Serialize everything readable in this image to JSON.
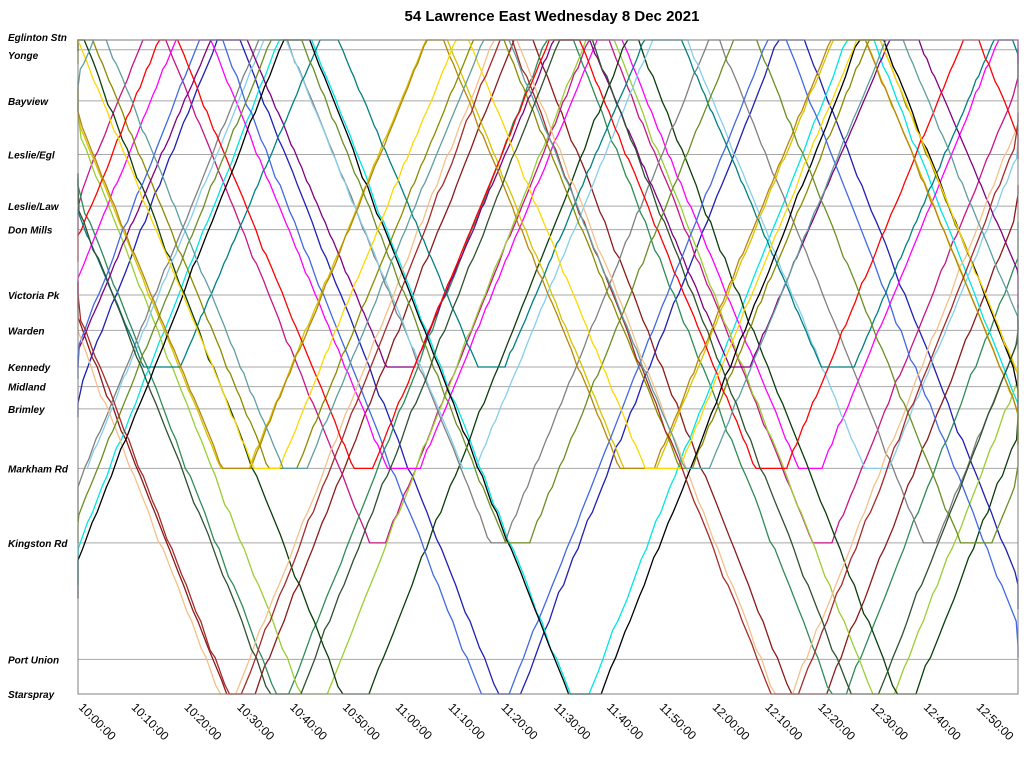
{
  "chart_data": {
    "type": "line",
    "title": "54 Lawrence East Wednesday 8 Dec 2021",
    "x_axis": {
      "start": "10:00:00",
      "end": "12:58:00",
      "tick_labels": [
        "10:00:00",
        "10:10:00",
        "10:20:00",
        "10:30:00",
        "10:40:00",
        "10:50:00",
        "11:00:00",
        "11:10:00",
        "11:20:00",
        "11:30:00",
        "11:40:00",
        "11:50:00",
        "12:00:00",
        "12:10:00",
        "12:20:00",
        "12:30:00",
        "12:40:00",
        "12:50:00"
      ]
    },
    "y_axis": {
      "type": "category",
      "stops": [
        {
          "name": "Eglinton Stn",
          "pos": 0.0
        },
        {
          "name": "Yonge",
          "pos": 0.015
        },
        {
          "name": "Bayview",
          "pos": 0.093
        },
        {
          "name": "Leslie/Egl",
          "pos": 0.175
        },
        {
          "name": "Leslie/Law",
          "pos": 0.254
        },
        {
          "name": "Don Mills",
          "pos": 0.29
        },
        {
          "name": "Victoria Pk",
          "pos": 0.39
        },
        {
          "name": "Warden",
          "pos": 0.444
        },
        {
          "name": "Kennedy",
          "pos": 0.5
        },
        {
          "name": "Midland",
          "pos": 0.53
        },
        {
          "name": "Brimley",
          "pos": 0.564
        },
        {
          "name": "Markham Rd",
          "pos": 0.655
        },
        {
          "name": "Kingston Rd",
          "pos": 0.769
        },
        {
          "name": "Port Union",
          "pos": 0.947
        },
        {
          "name": "Starspray",
          "pos": 1.0
        }
      ]
    },
    "grid": true,
    "legend": "none",
    "trip_pattern": "each line is one vehicle shuttling between Eglinton Stn and a terminal; layover and timing are approximate",
    "vehicles": [
      {
        "color": "#1f1fb4",
        "start_min": 2,
        "terminal": "Starspray",
        "dir": "down"
      },
      {
        "color": "#8b1a1a",
        "start_min": 6,
        "terminal": "Starspray",
        "dir": "up"
      },
      {
        "color": "#c71585",
        "start_min": 10,
        "terminal": "Kingston Rd",
        "dir": "down"
      },
      {
        "color": "#2e8b57",
        "start_min": 14,
        "terminal": "Starspray",
        "dir": "up"
      },
      {
        "color": "#00e5e5",
        "start_min": 18,
        "terminal": "Starspray",
        "dir": "down"
      },
      {
        "color": "#9acd32",
        "start_min": 22,
        "terminal": "Starspray",
        "dir": "up"
      },
      {
        "color": "#ff00ff",
        "start_min": 26,
        "terminal": "Markham Rd",
        "dir": "down"
      },
      {
        "color": "#0b3d0b",
        "start_min": 30,
        "terminal": "Starspray",
        "dir": "up"
      },
      {
        "color": "#808080",
        "start_min": 34,
        "terminal": "Kingston Rd",
        "dir": "down"
      },
      {
        "color": "#d4c400",
        "start_min": 38,
        "terminal": "Markham Rd",
        "dir": "up"
      },
      {
        "color": "#87ceeb",
        "start_min": 42,
        "terminal": "Markham Rd",
        "dir": "down"
      },
      {
        "color": "#8b8b00",
        "start_min": 46,
        "terminal": "Markham Rd",
        "dir": "up"
      },
      {
        "color": "#800080",
        "start_min": 50,
        "terminal": "Kennedy",
        "dir": "down"
      },
      {
        "color": "#4169e1",
        "start_min": 54,
        "terminal": "Starspray",
        "dir": "up"
      },
      {
        "color": "#f4c08a",
        "start_min": 58,
        "terminal": "Starspray",
        "dir": "down"
      },
      {
        "color": "#ff0000",
        "start_min": 62,
        "terminal": "Markham Rd",
        "dir": "up"
      },
      {
        "color": "#008080",
        "start_min": 66,
        "terminal": "Kennedy",
        "dir": "down"
      },
      {
        "color": "#000000",
        "start_min": 70,
        "terminal": "Starspray",
        "dir": "up"
      },
      {
        "color": "#b8860b",
        "start_min": 74,
        "terminal": "Markham Rd",
        "dir": "down"
      },
      {
        "color": "#6b8e23",
        "start_min": 78,
        "terminal": "Kingston Rd",
        "dir": "up"
      },
      {
        "color": "#ffd700",
        "start_min": 82,
        "terminal": "Markham Rd",
        "dir": "down"
      },
      {
        "color": "#a52a2a",
        "start_min": 86,
        "terminal": "Starspray",
        "dir": "up"
      },
      {
        "color": "#5f9ea0",
        "start_min": 90,
        "terminal": "Markham Rd",
        "dir": "down"
      },
      {
        "color": "#2f4f2f",
        "start_min": 94,
        "terminal": "Starspray",
        "dir": "up"
      }
    ]
  }
}
